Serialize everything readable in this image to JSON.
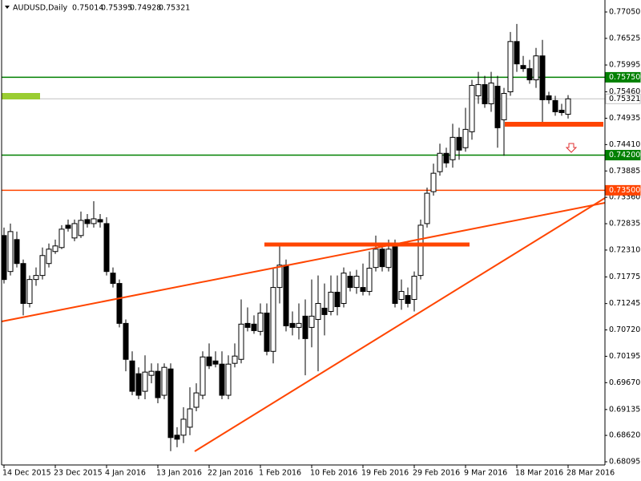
{
  "chart_data": {
    "type": "candlestick",
    "title": "AUDUSD,Daily",
    "categories": [
      "14 Dec 2015",
      null,
      null,
      null,
      null,
      null,
      null,
      null,
      "23 Dec 2015",
      null,
      null,
      null,
      null,
      null,
      null,
      null,
      "4 Jan 2016",
      null,
      null,
      null,
      null,
      null,
      null,
      null,
      "13 Jan 2016",
      null,
      null,
      null,
      null,
      null,
      null,
      null,
      "22 Jan 2016",
      null,
      null,
      null,
      null,
      null,
      null,
      null,
      "1 Feb 2016",
      null,
      null,
      null,
      null,
      null,
      null,
      null,
      "10 Feb 2016",
      null,
      null,
      null,
      null,
      null,
      null,
      null,
      "19 Feb 2016",
      null,
      null,
      null,
      null,
      null,
      null,
      null,
      "29 Feb 2016",
      null,
      null,
      null,
      null,
      null,
      null,
      null,
      "9 Mar 2016",
      null,
      null,
      null,
      null,
      null,
      null,
      null,
      "18 Mar 2016",
      null,
      null,
      null,
      null,
      null,
      null,
      null,
      "28 Mar 2016"
    ],
    "open": [
      0.72599,
      0.71883,
      0.72519,
      0.72042,
      0.71247,
      0.71724,
      0.71804,
      0.72042,
      0.72281,
      0.7236,
      0.72805,
      0.72551,
      0.72599,
      0.72917,
      0.72837,
      0.72917,
      0.72837,
      0.71851,
      0.71645,
      0.7085,
      0.70102,
      0.69848,
      0.69498,
      0.69816,
      0.69896,
      0.69419,
      0.69943,
      0.68624,
      0.68624,
      0.68783,
      0.6918,
      0.69419,
      0.70182,
      0.70102,
      0.70039,
      0.69419,
      0.70055,
      0.70134,
      0.7085,
      0.70835,
      0.70691,
      0.71056,
      0.70293,
      0.71565,
      0.7201,
      0.7085,
      0.7077,
      0.70994,
      0.7077,
      0.70929,
      0.71153,
      0.71088,
      0.71471,
      0.71247,
      0.71789,
      0.71565,
      0.71565,
      0.71486,
      0.71963,
      0.72328,
      0.71963,
      0.72408,
      0.71327,
      0.71406,
      0.71327,
      0.71804,
      0.72837,
      0.73473,
      0.73871,
      0.74236,
      0.74109,
      0.74554,
      0.74348,
      0.74666,
      0.75381,
      0.75604,
      0.75222,
      0.75572,
      0.74904,
      0.75461,
      0.76462,
      0.75985,
      0.75922,
      0.75699,
      0.76176,
      0.75381,
      0.75287,
      0.75095,
      0.75014
    ],
    "high": [
      0.72758,
      0.72837,
      0.72678,
      0.72122,
      0.71804,
      0.71963,
      0.7236,
      0.7244,
      0.72519,
      0.72805,
      0.72917,
      0.72917,
      0.73076,
      0.73028,
      0.73282,
      0.73028,
      0.72964,
      0.71963,
      0.71724,
      0.70929,
      0.70293,
      0.69975,
      0.70214,
      0.70055,
      0.70055,
      0.70055,
      0.70055,
      0.68783,
      0.6918,
      0.69577,
      0.69657,
      0.70293,
      0.70452,
      0.70293,
      0.70293,
      0.70214,
      0.70452,
      0.71327,
      0.71168,
      0.7101,
      0.71247,
      0.71247,
      0.71963,
      0.7244,
      0.72122,
      0.71088,
      0.71247,
      0.71327,
      0.71724,
      0.71804,
      0.71645,
      0.71804,
      0.71804,
      0.71963,
      0.71883,
      0.71916,
      0.72042,
      0.72281,
      0.72599,
      0.7244,
      0.72519,
      0.72519,
      0.71724,
      0.71565,
      0.71883,
      0.72917,
      0.73553,
      0.7403,
      0.74427,
      0.74348,
      0.74825,
      0.74745,
      0.75143,
      0.75699,
      0.75858,
      0.75779,
      0.75858,
      0.75779,
      0.7554,
      0.76653,
      0.76812,
      0.76176,
      0.76097,
      0.76335,
      0.76494,
      0.75461,
      0.75381,
      0.75222,
      0.75395
    ],
    "low": [
      0.71645,
      0.71804,
      0.71963,
      0.7101,
      0.71168,
      0.71598,
      0.71724,
      0.71963,
      0.72233,
      0.72328,
      0.72678,
      0.72487,
      0.72551,
      0.72758,
      0.72758,
      0.72758,
      0.71804,
      0.71565,
      0.7077,
      0.69896,
      0.69419,
      0.69339,
      0.69339,
      0.69657,
      0.6926,
      0.69339,
      0.68306,
      0.68385,
      0.68465,
      0.68624,
      0.69101,
      0.69339,
      0.69943,
      0.69975,
      0.69339,
      0.69339,
      0.69975,
      0.70055,
      0.70691,
      0.70643,
      0.70611,
      0.70214,
      0.70055,
      0.71247,
      0.70691,
      0.70611,
      0.70532,
      0.69816,
      0.70373,
      0.69896,
      0.70611,
      0.7101,
      0.7101,
      0.71168,
      0.71486,
      0.71439,
      0.71406,
      0.71406,
      0.71883,
      0.71883,
      0.71883,
      0.71168,
      0.71121,
      0.71168,
      0.71088,
      0.71724,
      0.72758,
      0.73394,
      0.73791,
      0.7395,
      0.7395,
      0.74109,
      0.74268,
      0.74507,
      0.75222,
      0.75143,
      0.75063,
      0.74348,
      0.74189,
      0.75381,
      0.75858,
      0.75858,
      0.7562,
      0.7554,
      0.74825,
      0.75222,
      0.74984,
      0.74984,
      0.74928
    ],
    "close": [
      0.71724,
      0.72678,
      0.72042,
      0.71247,
      0.71724,
      0.71804,
      0.72201,
      0.72328,
      0.72392,
      0.72726,
      0.72742,
      0.72837,
      0.72901,
      0.72837,
      0.72932,
      0.72869,
      0.71883,
      0.71645,
      0.7085,
      0.70134,
      0.69498,
      0.69419,
      0.6988,
      0.69896,
      0.69371,
      0.69975,
      0.68577,
      0.68544,
      0.68942,
      0.69148,
      0.69466,
      0.70182,
      0.70007,
      0.70039,
      0.69419,
      0.70039,
      0.70199,
      0.70835,
      0.7077,
      0.70706,
      0.71056,
      0.70293,
      0.71565,
      0.7201,
      0.70802,
      0.7077,
      0.7085,
      0.70547,
      0.70994,
      0.71247,
      0.71025,
      0.71471,
      0.71183,
      0.71851,
      0.71565,
      0.71789,
      0.71486,
      0.71948,
      0.72328,
      0.71979,
      0.72328,
      0.71247,
      0.71486,
      0.71247,
      0.71789,
      0.72805,
      0.73441,
      0.73839,
      0.74236,
      0.74045,
      0.74554,
      0.743,
      0.74713,
      0.75588,
      0.75604,
      0.75222,
      0.75635,
      0.74745,
      0.75429,
      0.76462,
      0.76017,
      0.75922,
      0.75699,
      0.76176,
      0.75302,
      0.75302,
      0.75063,
      0.75047,
      0.75321
    ],
    "up_color": "#ffffff",
    "down_color": "#000000",
    "ylim": [
      0.68031,
      0.77257
    ],
    "yticks": [
      {
        "value": 0.7705,
        "label": "0.77050"
      },
      0.76525,
      0.75995,
      {
        "value": 0.7546,
        "label": "0.75460"
      },
      0.74935,
      {
        "value": 0.7441,
        "label": "0.74410"
      },
      0.73885,
      {
        "value": 0.7336,
        "label": "0.73360"
      },
      0.72835,
      {
        "value": 0.7231,
        "label": "0.72310"
      },
      0.71775,
      0.71245,
      {
        "value": 0.7072,
        "label": "0.70720"
      },
      0.70195,
      {
        "value": 0.6967,
        "label": "0.69670"
      },
      0.69135,
      {
        "value": 0.6862,
        "label": "0.68620"
      },
      0.68095
    ],
    "levels": [
      {
        "value": 0.7575,
        "label": "0.75750",
        "color": "#008000",
        "text_color": "#ffffff"
      },
      {
        "value": 0.75321,
        "label": "0.75321",
        "color": "#c0c0c0",
        "text_color": "#000000"
      },
      {
        "value": 0.742,
        "label": "0.74200",
        "color": "#008000",
        "text_color": "#ffffff"
      },
      {
        "value": 0.735,
        "label": "0.73500",
        "color": "#ff4500",
        "text_color": "#ffffff"
      }
    ],
    "grid": false
  }
}
